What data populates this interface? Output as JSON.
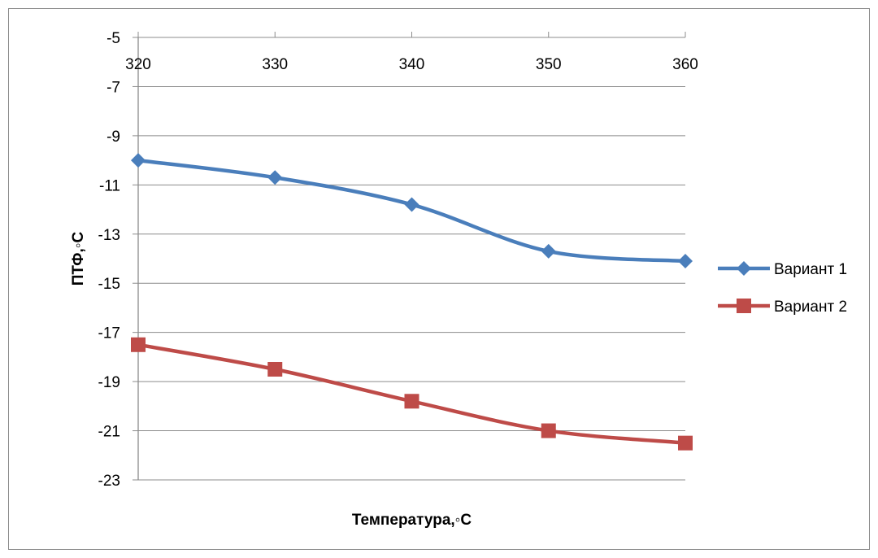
{
  "chart_data": {
    "type": "line",
    "title": "",
    "xlabel": "Температура,◦C",
    "ylabel": "ПТФ,◦C",
    "x": [
      320,
      330,
      340,
      350,
      360
    ],
    "x_tick_labels": [
      "320",
      "330",
      "340",
      "350",
      "360"
    ],
    "y_tick_labels": [
      "-5",
      "-7",
      "-9",
      "-11",
      "-13",
      "-15",
      "-17",
      "-19",
      "-21",
      "-23"
    ],
    "ylim": [
      -23,
      -5
    ],
    "xlim": [
      320,
      360
    ],
    "x_axis_position": "top",
    "grid": true,
    "legend_position": "right",
    "series": [
      {
        "name": "Вариант 1",
        "values": [
          -10.0,
          -10.7,
          -11.8,
          -13.7,
          -14.1
        ],
        "color": "#4a7ebb",
        "marker": "diamond"
      },
      {
        "name": "Вариант 2",
        "values": [
          -17.5,
          -18.5,
          -19.8,
          -21.0,
          -21.5
        ],
        "color": "#be4b48",
        "marker": "square"
      }
    ]
  }
}
